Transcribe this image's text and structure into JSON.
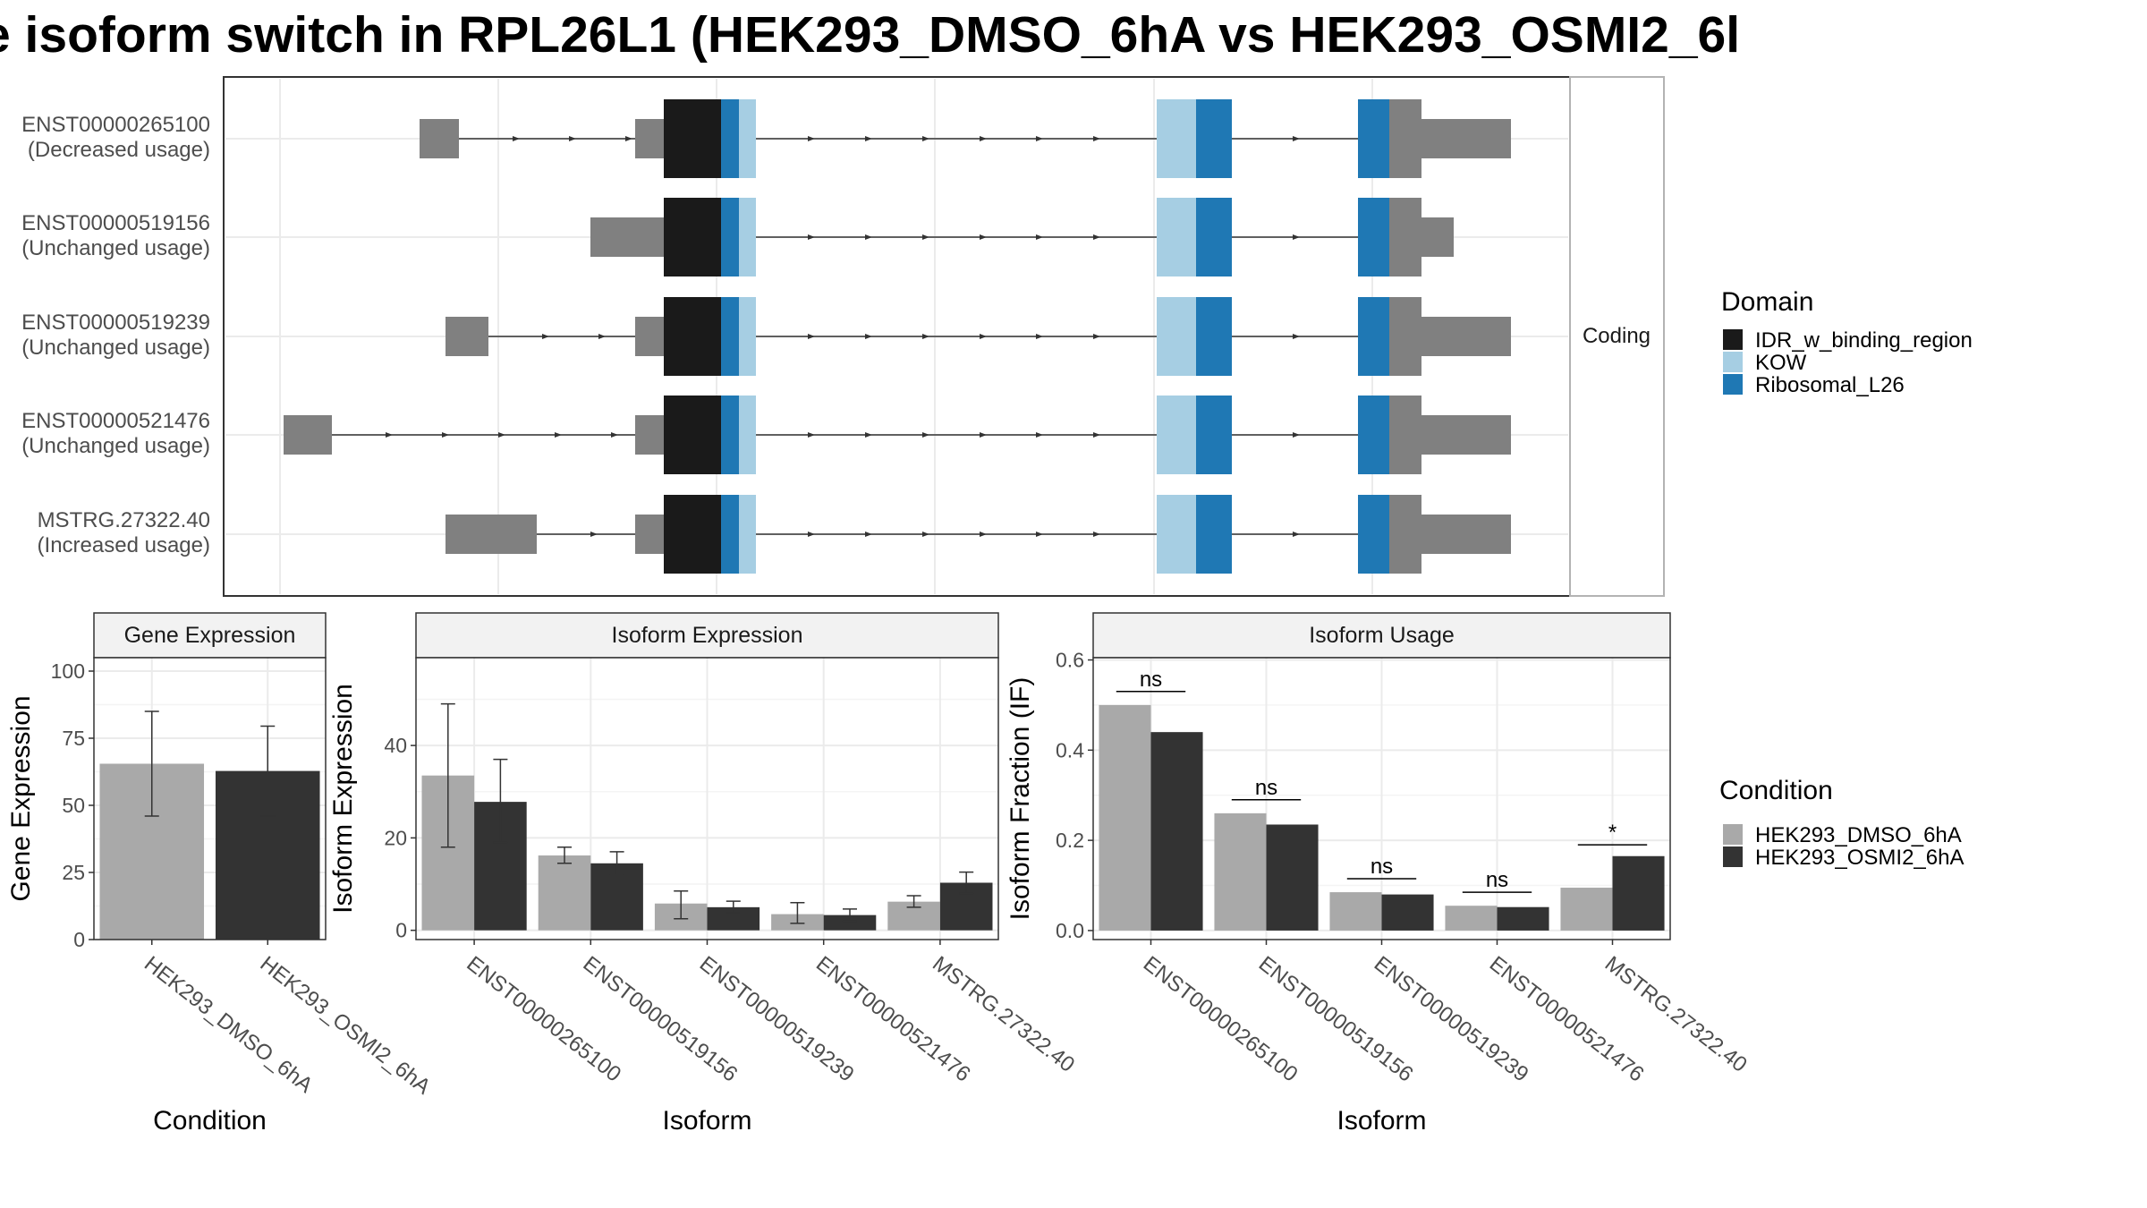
{
  "title": "e isoform switch in RPL26L1 (HEK293_DMSO_6hA vs HEK293_OSMI2_6l",
  "colors": {
    "utr": "#808080",
    "IDR_w_binding_region": "#1a1a1a",
    "KOW": "#a6cee3",
    "Ribosomal_L26": "#1f78b4",
    "HEK293_DMSO_6hA": "#a9a9a9",
    "HEK293_OSMI2_6hA": "#333333"
  },
  "chart_data": [
    {
      "type": "gene-structure",
      "strip_label": "Coding",
      "transcripts": [
        {
          "id": "ENST00000265100",
          "status": "(Decreased usage)",
          "first_exon": "short"
        },
        {
          "id": "ENST00000519156",
          "status": "(Unchanged usage)",
          "first_exon": "none"
        },
        {
          "id": "ENST00000519239",
          "status": "(Unchanged usage)",
          "first_exon": "short"
        },
        {
          "id": "ENST00000521476",
          "status": "(Unchanged usage)",
          "first_exon": "far"
        },
        {
          "id": "MSTRG.27322.40",
          "status": "(Increased usage)",
          "first_exon": "long"
        }
      ],
      "legend": {
        "title": "Domain",
        "entries": [
          "IDR_w_binding_region",
          "KOW",
          "Ribosomal_L26"
        ]
      }
    },
    {
      "type": "bar",
      "title": "Gene Expression",
      "xlabel": "Condition",
      "ylabel": "Gene Expression",
      "ylim": [
        0,
        105
      ],
      "yticks": [
        "0",
        "25",
        "50",
        "75",
        "100"
      ],
      "categories": [
        "HEK293_DMSO_6hA",
        "HEK293_OSMI2_6hA"
      ],
      "values": [
        65.5,
        62.8
      ],
      "error_low": [
        46,
        46
      ],
      "error_high": [
        85,
        79.5
      ]
    },
    {
      "type": "bar",
      "title": "Isoform Expression",
      "xlabel": "Isoform",
      "ylabel": "Isoform Expression",
      "ylim": [
        -2,
        59
      ],
      "yticks": [
        "0",
        "20",
        "40"
      ],
      "categories": [
        "ENST00000265100",
        "ENST00000519156",
        "ENST00000519239",
        "ENST00000521476",
        "MSTRG.27322.40"
      ],
      "series": [
        {
          "name": "HEK293_DMSO_6hA",
          "values": [
            33.5,
            16.2,
            5.8,
            3.5,
            6.2
          ],
          "error_low": [
            18,
            14.5,
            2.5,
            1.5,
            5
          ],
          "error_high": [
            49,
            18,
            8.5,
            6,
            7.5
          ]
        },
        {
          "name": "HEK293_OSMI2_6hA",
          "values": [
            27.8,
            14.5,
            5.0,
            3.3,
            10.3
          ],
          "error_low": [
            19,
            12,
            3.8,
            2,
            8
          ],
          "error_high": [
            37,
            17,
            6.3,
            4.6,
            12.6
          ]
        }
      ]
    },
    {
      "type": "bar",
      "title": "Isoform Usage",
      "xlabel": "Isoform",
      "ylabel": "Isoform Fraction (IF)",
      "ylim": [
        -0.02,
        0.605
      ],
      "yticks": [
        "0.0",
        "0.2",
        "0.4",
        "0.6"
      ],
      "categories": [
        "ENST00000265100",
        "ENST00000519156",
        "ENST00000519239",
        "ENST00000521476",
        "MSTRG.27322.40"
      ],
      "series": [
        {
          "name": "HEK293_DMSO_6hA",
          "values": [
            0.5,
            0.26,
            0.085,
            0.055,
            0.095
          ]
        },
        {
          "name": "HEK293_OSMI2_6hA",
          "values": [
            0.44,
            0.235,
            0.08,
            0.052,
            0.165
          ]
        }
      ],
      "significance": [
        "ns",
        "ns",
        "ns",
        "ns",
        "*"
      ],
      "significance_y": [
        0.53,
        0.29,
        0.115,
        0.085,
        0.19
      ]
    }
  ],
  "condition_legend": {
    "title": "Condition",
    "entries": [
      "HEK293_DMSO_6hA",
      "HEK293_OSMI2_6hA"
    ]
  }
}
